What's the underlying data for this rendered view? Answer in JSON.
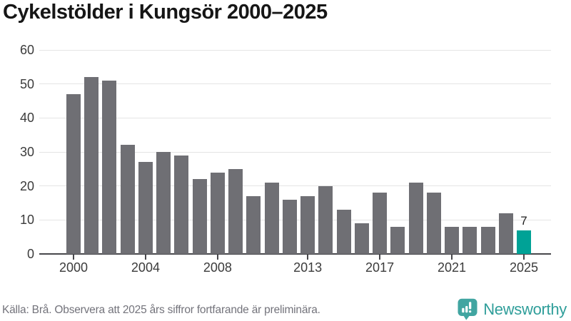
{
  "title": "Cykelstölder i Kungsör 2000–2025",
  "footer": {
    "source_note": "Källa: Brå. Observera att 2025 års siffror fortfarande är preliminära.",
    "brand": "Newsworthy"
  },
  "colors": {
    "bar": "#6F6F74",
    "highlight": "#00A296",
    "grid": "#E4E4E4",
    "axis": "#47474B",
    "tick_label": "#3B3B3B",
    "title": "#161616",
    "footer_text": "#73737B",
    "brand_teal": "#2F9E9A",
    "brand_icon_teal": "#41A5A1"
  },
  "chart_data": {
    "type": "bar",
    "title": "Cykelstölder i Kungsör 2000–2025",
    "xlabel": "",
    "ylabel": "",
    "categories": [
      2000,
      2001,
      2002,
      2003,
      2004,
      2005,
      2006,
      2007,
      2008,
      2009,
      2010,
      2011,
      2012,
      2013,
      2014,
      2015,
      2016,
      2017,
      2018,
      2019,
      2020,
      2021,
      2022,
      2023,
      2024,
      2025
    ],
    "values": [
      47,
      52,
      51,
      32,
      27,
      30,
      29,
      22,
      24,
      25,
      17,
      21,
      16,
      17,
      20,
      13,
      9,
      18,
      8,
      21,
      18,
      8,
      8,
      8,
      12,
      7
    ],
    "ylim": [
      0,
      60
    ],
    "y_ticks": [
      0,
      10,
      20,
      30,
      40,
      50,
      60
    ],
    "x_tick_labels": [
      2000,
      2004,
      2008,
      2013,
      2017,
      2021,
      2025
    ],
    "grid": "horizontal",
    "legend": "none",
    "highlight": {
      "category": 2025,
      "value_label": "7"
    }
  }
}
